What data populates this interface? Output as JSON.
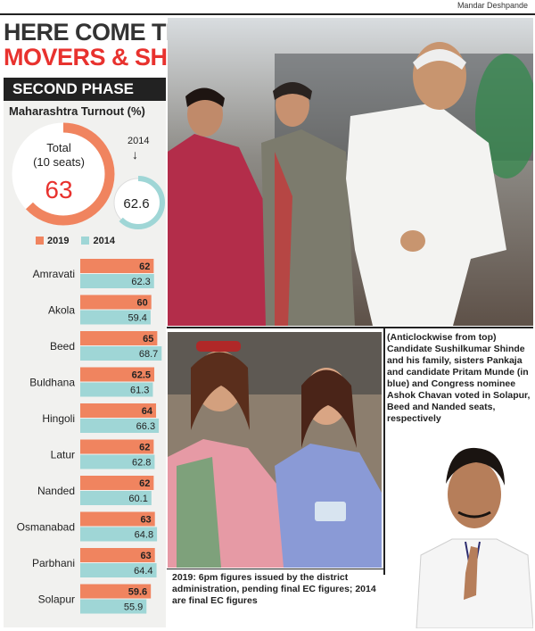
{
  "credit": "Mandar Deshpande",
  "headline": {
    "line1": "HERE COME THE",
    "line2": "MOVERS & SHAKERS"
  },
  "section": "SECOND PHASE",
  "summary": {
    "title": "Maharashtra Turnout (%)",
    "total_label_1": "Total",
    "total_label_2": "(10 seats)",
    "total_2019": 63,
    "total_2019_text": "63",
    "label_2014": "2014",
    "total_2014_text": "62.6",
    "total_2014": 62.6
  },
  "colors": {
    "series_2019": "#f0845f",
    "series_2014": "#9fd6d6",
    "accent_red": "#e8322e"
  },
  "chart_data": {
    "type": "bar",
    "orientation": "horizontal",
    "title": "Maharashtra Turnout (%)",
    "categories": [
      "Amravati",
      "Akola",
      "Beed",
      "Buldhana",
      "Hingoli",
      "Latur",
      "Nanded",
      "Osmanabad",
      "Parbhani",
      "Solapur"
    ],
    "series": [
      {
        "name": "2019",
        "values": [
          62,
          60,
          65,
          62.5,
          64,
          62,
          62,
          63,
          63,
          59.6
        ],
        "labels": [
          "62",
          "60",
          "65",
          "62.5",
          "64",
          "62",
          "62",
          "63",
          "63",
          "59.6"
        ]
      },
      {
        "name": "2014",
        "values": [
          62.3,
          59.4,
          68.7,
          61.3,
          66.3,
          62.8,
          60.1,
          64.8,
          64.4,
          55.9
        ],
        "labels": [
          "62.3",
          "59.4",
          "68.7",
          "61.3",
          "66.3",
          "62.8",
          "60.1",
          "64.8",
          "64.4",
          "55.9"
        ]
      }
    ],
    "legend": "top",
    "grid": false
  },
  "caption": "(Anticlockwise from top) Candidate Sushilkumar Shinde and his family, sisters Pankaja and candidate Pritam Munde (in blue) and Congress nominee Ashok Chavan voted in Solapur, Beed and Nanded seats, respectively",
  "note": "2019: 6pm figures issued by the district administration, pending final EC figures; 2014 are final EC figures"
}
